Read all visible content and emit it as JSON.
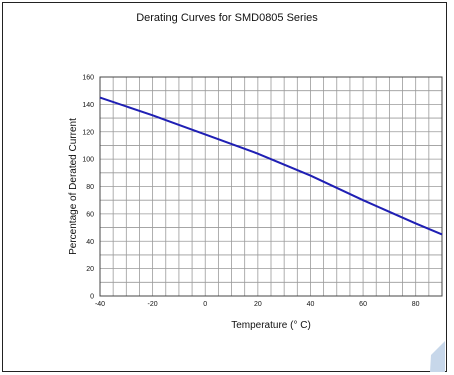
{
  "chart_data": {
    "type": "line",
    "title": "Derating Curves for SMD0805 Series",
    "xlabel": "Temperature (° C)",
    "ylabel": "Percentage of Derated Current",
    "xlim": [
      -40,
      90
    ],
    "ylim": [
      0,
      160
    ],
    "grid": true,
    "x_tick_labels": [
      "-40",
      "-20",
      "0",
      "20",
      "40",
      "60",
      "80"
    ],
    "y_tick_labels": [
      "0",
      "20",
      "40",
      "60",
      "80",
      "100",
      "120",
      "140",
      "160"
    ],
    "series": [
      {
        "color": "#1f1fb4",
        "x": [
          -40,
          -20,
          0,
          20,
          40,
          60,
          80,
          90
        ],
        "y": [
          145,
          132,
          118,
          104,
          88,
          70,
          53,
          45
        ]
      }
    ]
  },
  "decor": {
    "corner_color": "#c7d7ea"
  }
}
